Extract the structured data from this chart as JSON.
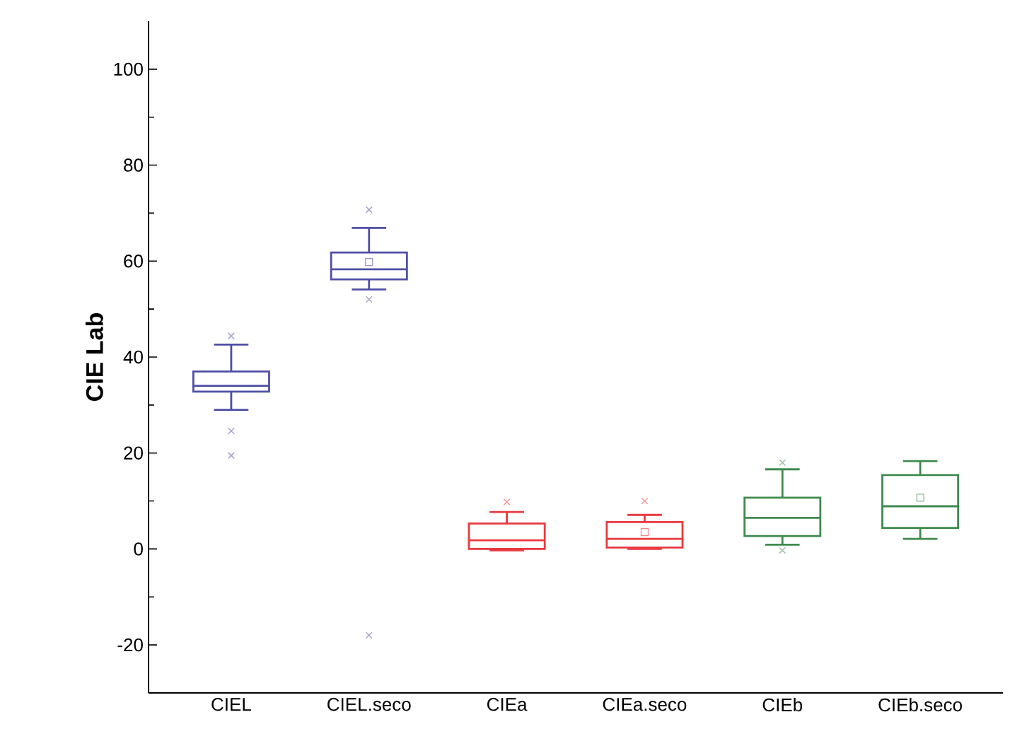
{
  "chart_data": {
    "type": "box",
    "ylabel": "CIE Lab",
    "categories": [
      "CIEL",
      "CIEL.seco",
      "CIEa",
      "CIEa.seco",
      "CIEb",
      "CIEb.seco"
    ],
    "colors": [
      "#4f4fa6",
      "#4f4fa6",
      "#e8393f",
      "#e8393f",
      "#3f8a4f",
      "#3f8a4f"
    ],
    "boxes": [
      {
        "low": 29,
        "q1": 32.8,
        "median": 34,
        "q3": 37,
        "high": 42.6,
        "outliers": [
          44.4,
          24.6,
          19.5
        ]
      },
      {
        "low": 54.1,
        "q1": 56.2,
        "median": 58.3,
        "q3": 61.8,
        "high": 66.9,
        "mean": 59.8,
        "outliers": [
          70.7,
          52,
          -18
        ]
      },
      {
        "low": -0.3,
        "q1": 0,
        "median": 1.8,
        "q3": 5.3,
        "high": 7.7,
        "outliers": [
          9.8
        ]
      },
      {
        "low": 0,
        "q1": 0.3,
        "median": 2.1,
        "q3": 5.6,
        "high": 7.1,
        "mean": 3.5,
        "outliers": [
          10
        ]
      },
      {
        "low": 0.9,
        "q1": 2.7,
        "median": 6.5,
        "q3": 10.7,
        "high": 16.6,
        "outliers": [
          18,
          -0.3
        ]
      },
      {
        "low": 2.1,
        "q1": 4.4,
        "median": 8.9,
        "q3": 15.4,
        "high": 18.3,
        "mean": 10.7
      }
    ],
    "ylim": [
      -30,
      110
    ],
    "yticks": [
      -20,
      0,
      20,
      40,
      60,
      80,
      100
    ],
    "grid": false
  }
}
